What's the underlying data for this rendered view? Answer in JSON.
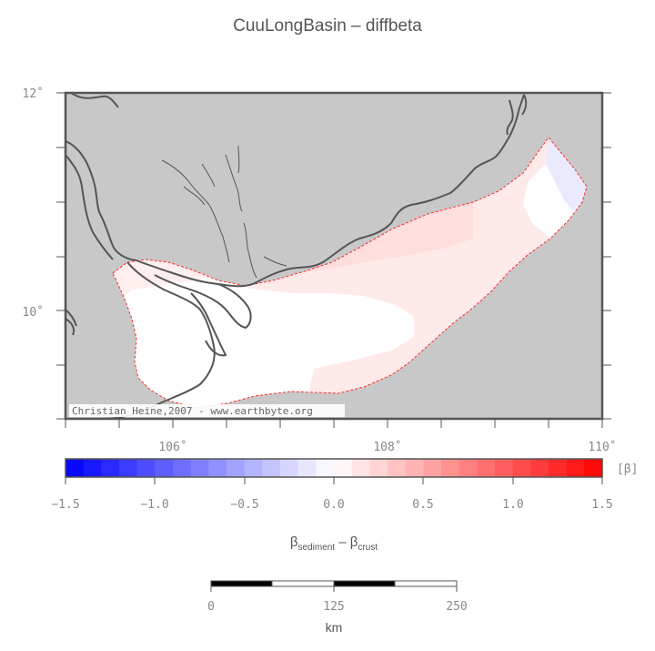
{
  "title": "CuuLongBasin – diffbeta",
  "map": {
    "lat_labels": [
      "12˚",
      "10˚"
    ],
    "lon_labels": [
      "106˚",
      "108˚",
      "110˚"
    ],
    "credit": "Christian Heine,2007 - www.earthbyte.org",
    "extent": {
      "lon_min": 105.0,
      "lon_max": 110.0,
      "lat_min": 9.0,
      "lat_max": 12.0
    }
  },
  "colorbar": {
    "unit": "[β]",
    "ticks": [
      "−1.5",
      "−1.0",
      "−0.5",
      "0.0",
      "0.5",
      "1.0",
      "1.5"
    ],
    "range": [
      -1.5,
      1.5
    ],
    "label_parts": {
      "beta": "β",
      "sub1": "sediment",
      "minus": " – ",
      "beta2": "β",
      "sub2": "crust"
    }
  },
  "scalebar": {
    "ticks": [
      "0",
      "125",
      "250"
    ],
    "unit": "km"
  },
  "colors": {
    "land": "#c8c8c8",
    "coast": "#555555",
    "basin_outline": "#ff2a2a",
    "negative": "#0000ff",
    "positive": "#ff0000"
  }
}
